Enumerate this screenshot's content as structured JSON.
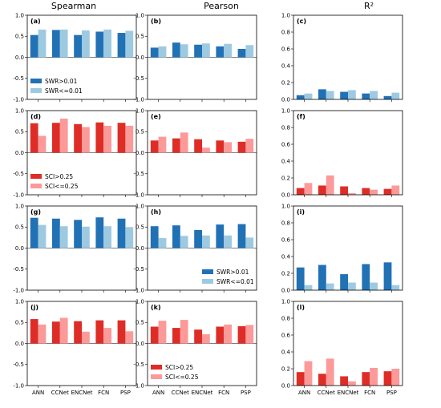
{
  "figure": {
    "column_titles": [
      "Spearman",
      "Pearson",
      "R²"
    ]
  },
  "colors": {
    "dark_blue": "#2171b5",
    "light_blue": "#9ecae1",
    "dark_red": "#de2d26",
    "light_red": "#fc9a9a"
  },
  "chart_data": [
    {
      "type": "bar",
      "label": "(a)",
      "row": 0,
      "col": 0,
      "categories": [
        "ANN",
        "CCNet",
        "ENCNet",
        "FCN",
        "PSP"
      ],
      "ylim": [
        -1,
        1
      ],
      "yticks": [
        "-1.0",
        "-0.5",
        "0.0",
        "0.5",
        "1.0"
      ],
      "palette": "blue",
      "series": [
        {
          "name": "SWR>0.01",
          "values": [
            0.53,
            0.65,
            0.53,
            0.61,
            0.58
          ]
        },
        {
          "name": "SWR<=0.01",
          "values": [
            0.66,
            0.66,
            0.64,
            0.66,
            0.63
          ]
        }
      ],
      "legend": "lower-left"
    },
    {
      "type": "bar",
      "label": "(b)",
      "row": 0,
      "col": 1,
      "categories": [
        "ANN",
        "CCNet",
        "ENCNet",
        "FCN",
        "PSP"
      ],
      "ylim": [
        -1,
        1
      ],
      "yticks": [
        "-1.0",
        "-0.5",
        "0.0",
        "0.5",
        "1.0"
      ],
      "palette": "blue",
      "series": [
        {
          "name": "SWR>0.01",
          "values": [
            0.23,
            0.35,
            0.3,
            0.26,
            0.2
          ]
        },
        {
          "name": "SWR<=0.01",
          "values": [
            0.26,
            0.31,
            0.33,
            0.32,
            0.29
          ]
        }
      ]
    },
    {
      "type": "bar",
      "label": "(c)",
      "row": 0,
      "col": 2,
      "categories": [
        "ANN",
        "CCNet",
        "ENCNet",
        "FCN",
        "PSP"
      ],
      "ylim": [
        0,
        1
      ],
      "yticks": [
        "0.0",
        "0.2",
        "0.4",
        "0.6",
        "0.8",
        "1.0"
      ],
      "palette": "blue",
      "series": [
        {
          "name": "SWR>0.01",
          "values": [
            0.05,
            0.12,
            0.09,
            0.07,
            0.04
          ]
        },
        {
          "name": "SWR<=0.01",
          "values": [
            0.07,
            0.1,
            0.11,
            0.1,
            0.08
          ]
        }
      ]
    },
    {
      "type": "bar",
      "label": "(d)",
      "row": 1,
      "col": 0,
      "categories": [
        "ANN",
        "CCNet",
        "ENCNet",
        "FCN",
        "PSP"
      ],
      "ylim": [
        -1,
        1
      ],
      "yticks": [
        "-1.0",
        "-0.5",
        "0.0",
        "0.5",
        "1.0"
      ],
      "palette": "red",
      "series": [
        {
          "name": "SCI>0.25",
          "values": [
            0.7,
            0.71,
            0.68,
            0.72,
            0.71
          ]
        },
        {
          "name": "SCI<=0.25",
          "values": [
            0.4,
            0.81,
            0.61,
            0.64,
            0.64
          ]
        }
      ],
      "legend": "lower-left"
    },
    {
      "type": "bar",
      "label": "(e)",
      "row": 1,
      "col": 1,
      "categories": [
        "ANN",
        "CCNet",
        "ENCNet",
        "FCN",
        "PSP"
      ],
      "ylim": [
        -1,
        1
      ],
      "yticks": [
        "-1.0",
        "-0.5",
        "0.0",
        "0.5",
        "1.0"
      ],
      "palette": "red",
      "series": [
        {
          "name": "SCI>0.25",
          "values": [
            0.29,
            0.34,
            0.32,
            0.29,
            0.26
          ]
        },
        {
          "name": "SCI<=0.25",
          "values": [
            0.38,
            0.48,
            0.12,
            0.25,
            0.33
          ]
        }
      ]
    },
    {
      "type": "bar",
      "label": "(f)",
      "row": 1,
      "col": 2,
      "categories": [
        "ANN",
        "CCNet",
        "ENCNet",
        "FCN",
        "PSP"
      ],
      "ylim": [
        0,
        1
      ],
      "yticks": [
        "0.0",
        "0.2",
        "0.4",
        "0.6",
        "0.8",
        "1.0"
      ],
      "palette": "red",
      "series": [
        {
          "name": "SCI>0.25",
          "values": [
            0.08,
            0.11,
            0.1,
            0.08,
            0.07
          ]
        },
        {
          "name": "SCI<=0.25",
          "values": [
            0.14,
            0.23,
            0.02,
            0.06,
            0.11
          ]
        }
      ]
    },
    {
      "type": "bar",
      "label": "(g)",
      "row": 2,
      "col": 0,
      "categories": [
        "ANN",
        "CCNet",
        "ENCNet",
        "FCN",
        "PSP"
      ],
      "ylim": [
        -1,
        1
      ],
      "yticks": [
        "-1.0",
        "-0.5",
        "0.0",
        "0.5",
        "1.0"
      ],
      "palette": "blue",
      "series": [
        {
          "name": "SWR>0.01",
          "values": [
            0.72,
            0.7,
            0.67,
            0.73,
            0.7
          ]
        },
        {
          "name": "SWR<=0.01",
          "values": [
            0.55,
            0.52,
            0.51,
            0.52,
            0.5
          ]
        }
      ]
    },
    {
      "type": "bar",
      "label": "(h)",
      "row": 2,
      "col": 1,
      "categories": [
        "ANN",
        "CCNet",
        "ENCNet",
        "FCN",
        "PSP"
      ],
      "ylim": [
        -1,
        1
      ],
      "yticks": [
        "-1.0",
        "-0.5",
        "0.0",
        "0.5",
        "1.0"
      ],
      "palette": "blue",
      "series": [
        {
          "name": "SWR>0.01",
          "values": [
            0.52,
            0.54,
            0.43,
            0.56,
            0.57
          ]
        },
        {
          "name": "SWR<=0.01",
          "values": [
            0.24,
            0.29,
            0.3,
            0.3,
            0.25
          ]
        }
      ],
      "legend": "lower-right"
    },
    {
      "type": "bar",
      "label": "(i)",
      "row": 2,
      "col": 2,
      "categories": [
        "ANN",
        "CCNet",
        "ENCNet",
        "FCN",
        "PSP"
      ],
      "ylim": [
        0,
        1
      ],
      "yticks": [
        "0.0",
        "0.2",
        "0.4",
        "0.6",
        "0.8",
        "1.0"
      ],
      "palette": "blue",
      "series": [
        {
          "name": "SWR>0.01",
          "values": [
            0.27,
            0.3,
            0.19,
            0.31,
            0.33
          ]
        },
        {
          "name": "SWR<=0.01",
          "values": [
            0.06,
            0.08,
            0.09,
            0.09,
            0.06
          ]
        }
      ]
    },
    {
      "type": "bar",
      "label": "(j)",
      "row": 3,
      "col": 0,
      "categories": [
        "ANN",
        "CCNet",
        "ENCNet",
        "FCN",
        "PSP"
      ],
      "ylim": [
        -1,
        1
      ],
      "yticks": [
        "-1.0",
        "-0.5",
        "0.0",
        "0.5",
        "1.0"
      ],
      "palette": "red",
      "series": [
        {
          "name": "SCI>0.25",
          "values": [
            0.58,
            0.52,
            0.53,
            0.55,
            0.55
          ]
        },
        {
          "name": "SCI<=0.25",
          "values": [
            0.45,
            0.61,
            0.28,
            0.37,
            0.29
          ]
        }
      ]
    },
    {
      "type": "bar",
      "label": "(k)",
      "row": 3,
      "col": 1,
      "categories": [
        "ANN",
        "CCNet",
        "ENCNet",
        "FCN",
        "PSP"
      ],
      "ylim": [
        -1,
        1
      ],
      "yticks": [
        "-1.0",
        "-0.5",
        "0.0",
        "0.5",
        "1.0"
      ],
      "palette": "red",
      "series": [
        {
          "name": "SCI>0.25",
          "values": [
            0.4,
            0.37,
            0.33,
            0.4,
            0.41
          ]
        },
        {
          "name": "SCI<=0.25",
          "values": [
            0.54,
            0.56,
            0.22,
            0.45,
            0.44
          ]
        }
      ],
      "legend": "lower-left"
    },
    {
      "type": "bar",
      "label": "(l)",
      "row": 3,
      "col": 2,
      "categories": [
        "ANN",
        "CCNet",
        "ENCNet",
        "FCN",
        "PSP"
      ],
      "ylim": [
        0,
        1
      ],
      "yticks": [
        "0.0",
        "0.2",
        "0.4",
        "0.6",
        "0.8",
        "1.0"
      ],
      "palette": "red",
      "series": [
        {
          "name": "SCI>0.25",
          "values": [
            0.16,
            0.14,
            0.11,
            0.16,
            0.17
          ]
        },
        {
          "name": "SCI<=0.25",
          "values": [
            0.29,
            0.32,
            0.05,
            0.21,
            0.2
          ]
        }
      ]
    }
  ]
}
